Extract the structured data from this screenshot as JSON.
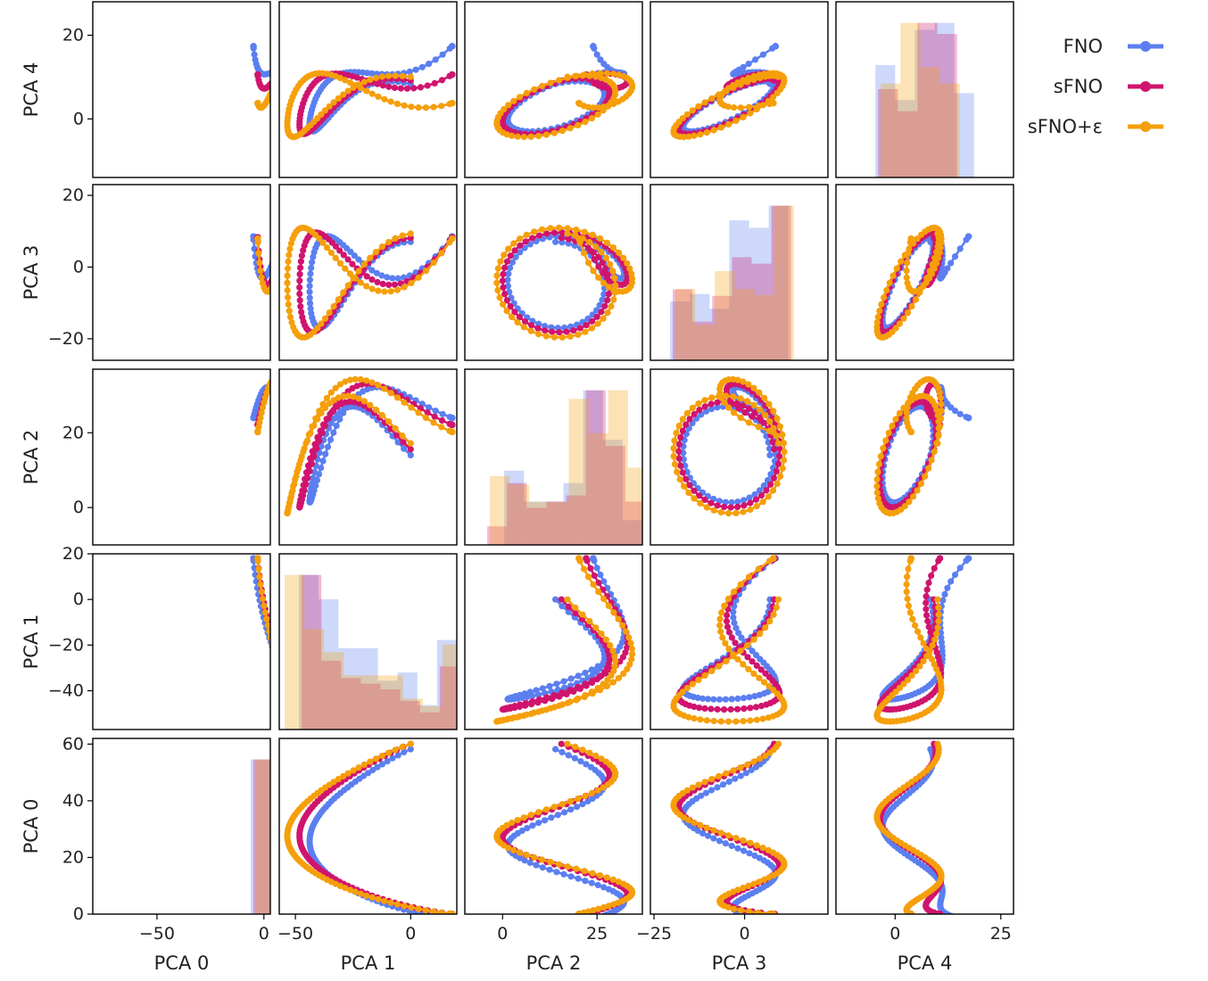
{
  "chart_data": {
    "type": "scatter",
    "layout": "pairplot",
    "variables": [
      "PCA 0",
      "PCA 1",
      "PCA 2",
      "PCA 3",
      "PCA 4"
    ],
    "series": [
      {
        "name": "FNO",
        "color": "#5b7ff0"
      },
      {
        "name": "sFNO",
        "color": "#d0146e"
      },
      {
        "name": "sFNO+ε",
        "color": "#f59f0a"
      }
    ],
    "axes": {
      "PCA 0": {
        "range": [
          -80,
          3
        ],
        "ticks": [
          -50,
          0
        ],
        "tick_labels": [
          "−50",
          "0"
        ]
      },
      "PCA 1": {
        "range": [
          -57,
          20
        ],
        "ticks": [
          -50,
          0
        ],
        "tick_labels": [
          "−50",
          "0"
        ],
        "y_ticks": [
          -40,
          -20,
          0,
          20
        ],
        "y_tick_labels": [
          "−40",
          "−20",
          "0",
          "20"
        ]
      },
      "PCA 2": {
        "range": [
          -10,
          37
        ],
        "ticks": [
          0,
          25
        ],
        "tick_labels": [
          "0",
          "25"
        ],
        "y_ticks": [
          0,
          20
        ],
        "y_tick_labels": [
          "0",
          "20"
        ]
      },
      "PCA 3": {
        "range": [
          -26,
          23
        ],
        "ticks": [
          -25,
          0
        ],
        "tick_labels": [
          "−25",
          "0"
        ],
        "y_ticks": [
          -20,
          0,
          20
        ],
        "y_tick_labels": [
          "−20",
          "0",
          "20"
        ]
      },
      "PCA 4": {
        "range": [
          -14,
          28
        ],
        "ticks": [
          0,
          25
        ],
        "tick_labels": [
          "0",
          "25"
        ],
        "y_ticks": [
          0,
          20
        ],
        "y_tick_labels": [
          "0",
          "20"
        ]
      }
    },
    "diag_hist": {
      "y_ticks": [
        0,
        20,
        40,
        60
      ],
      "y_tick_labels": [
        "0",
        "20",
        "40",
        "60"
      ],
      "y_range": [
        0,
        62
      ]
    },
    "legend_position": "outside-right",
    "grid": false
  }
}
